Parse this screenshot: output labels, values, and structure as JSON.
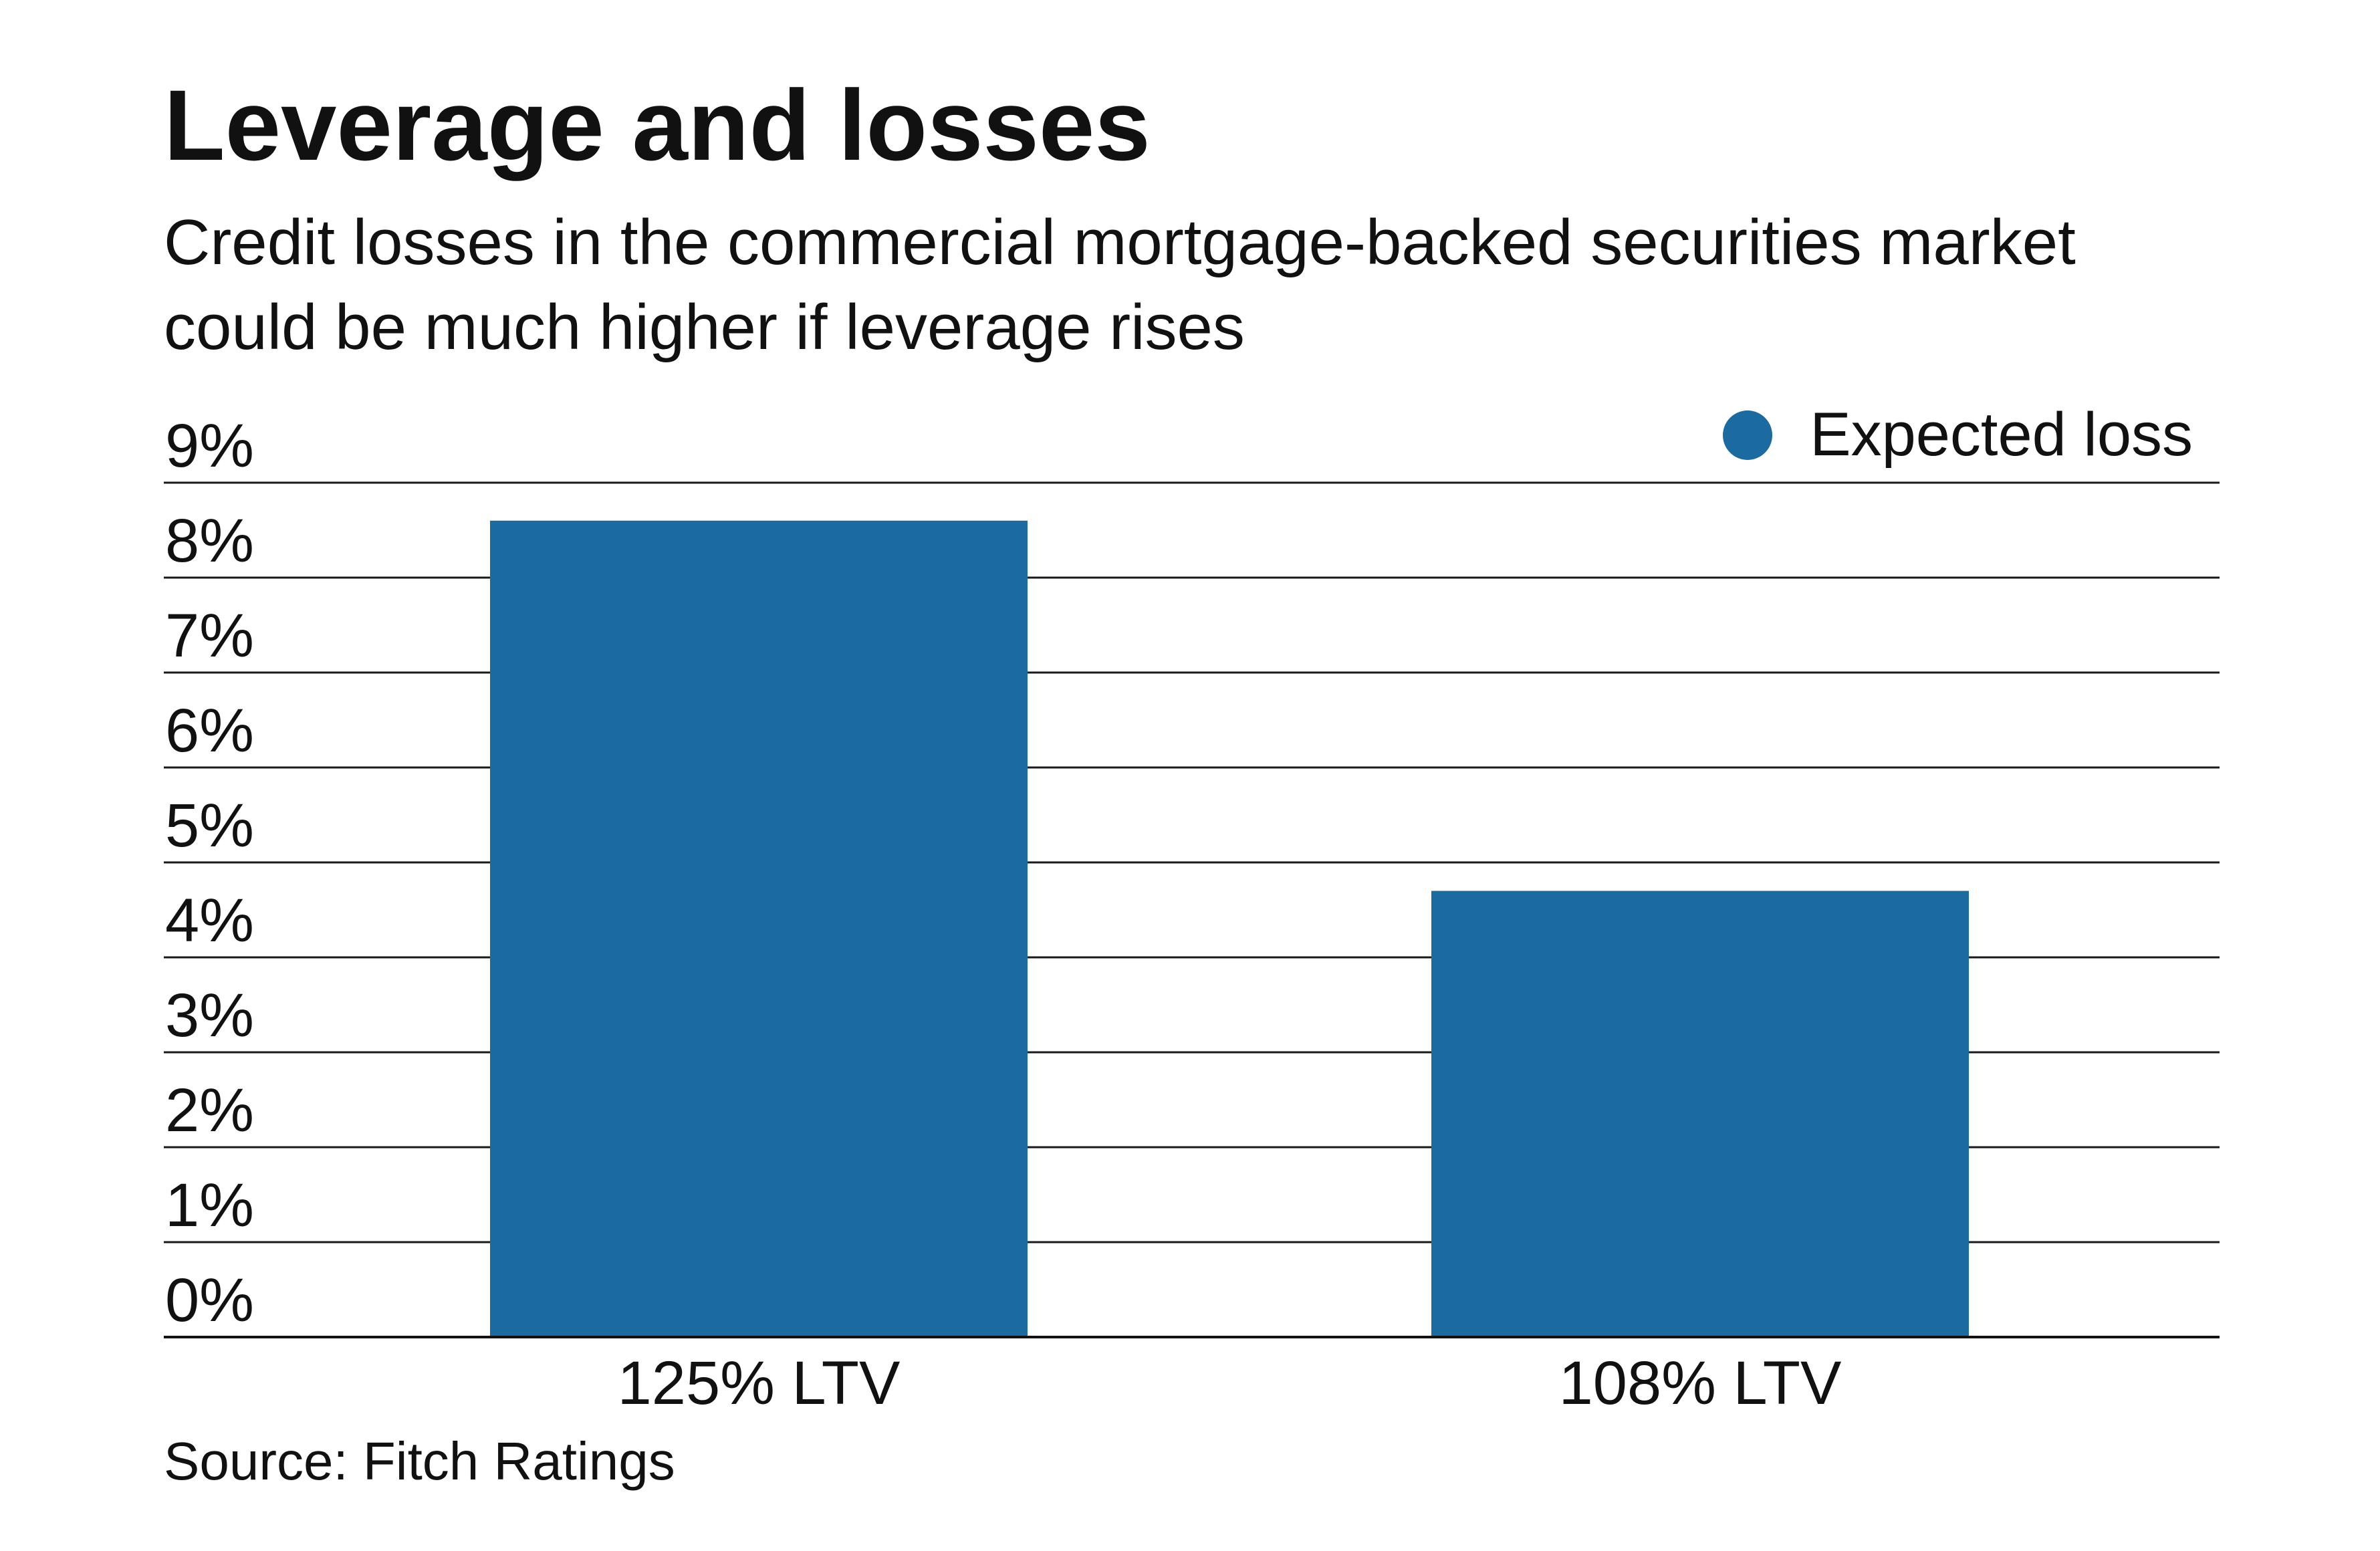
{
  "chart_data": {
    "type": "bar",
    "title": "Leverage and losses",
    "subtitle": "Credit losses in the commercial mortgage-backed securities market could be much higher if leverage rises",
    "categories": [
      "125% LTV",
      "108% LTV"
    ],
    "series": [
      {
        "name": "Expected loss",
        "values": [
          8.6,
          4.7
        ],
        "color": "#1b6aa0"
      }
    ],
    "yticks": [
      "0%",
      "1%",
      "2%",
      "3%",
      "4%",
      "5%",
      "6%",
      "7%",
      "8%",
      "9%"
    ],
    "ylim": [
      0,
      9
    ],
    "xlabel": "",
    "ylabel": "",
    "grid": true,
    "legend": "top-right",
    "source": "Source: Fitch Ratings"
  }
}
